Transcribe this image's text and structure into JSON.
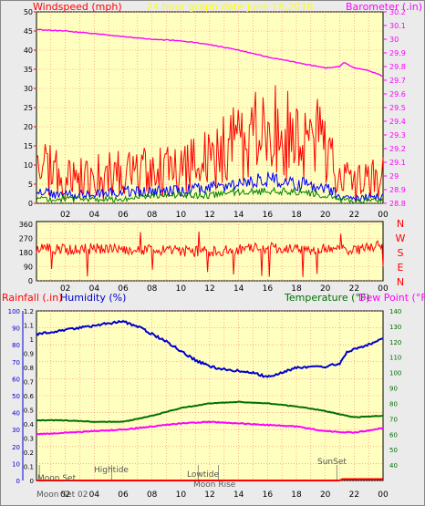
{
  "header": {
    "windspeed_label": "Windspeed (mph)",
    "graph_title": "24 hour graph date  June 18,2018",
    "barometer_label": "Barometer (.in)"
  },
  "middle_header": {
    "dir_letters": [
      "N",
      "W",
      "S",
      "E",
      "N"
    ]
  },
  "lower_header": {
    "rainfall_label": "Rainfall (.in)",
    "humidity_label": "Humidity (%)",
    "temperature_label": "Temperature (°F)",
    "dewpoint_label": "Dew Point (°F)"
  },
  "annotations": {
    "moonset_label": "Moon Set",
    "hightide_label": "Hightide",
    "lowtide_label": "Lowtide",
    "moonrise_label": "Moon Rise",
    "sunset_label": "SunSet",
    "bottom_label": "Moon Set 02"
  },
  "colors": {
    "panel_bg": "#ffffc0",
    "frame_bg": "#ebebeb",
    "grid": "#ff7878",
    "wind_red": "#ff0000",
    "wind_blue": "#0000ff",
    "wind_green": "#008000",
    "barometer": "#ff00ff",
    "humidity": "#0000cc",
    "temperature": "#007000",
    "dewpoint": "#ff00ff",
    "title_yellow": "#ffff00"
  },
  "chart_data": [
    {
      "type": "line",
      "x_tick_labels": [
        "02",
        "04",
        "06",
        "08",
        "10",
        "12",
        "14",
        "16",
        "18",
        "20",
        "22",
        "00"
      ],
      "left_axis": {
        "label": "Windspeed (mph)",
        "range": [
          0,
          50
        ],
        "ticks": [
          "0",
          "5",
          "10",
          "15",
          "20",
          "25",
          "30",
          "35",
          "40",
          "45",
          "50"
        ]
      },
      "right_axis": {
        "label": "Barometer (.in)",
        "range": [
          28.8,
          30.2
        ],
        "ticks": [
          "28.8",
          "28.9",
          "29",
          "29.1",
          "29.2",
          "29.3",
          "29.4",
          "29.5",
          "29.6",
          "29.7",
          "29.8",
          "29.9",
          "30",
          "30.1",
          "30.2"
        ]
      },
      "series": [
        {
          "name": "Barometer",
          "axis": "right",
          "x": [
            0,
            2,
            4,
            6,
            8,
            10,
            12,
            14,
            16,
            18,
            20,
            21,
            21.3,
            22,
            23,
            24
          ],
          "values": [
            30.07,
            30.06,
            30.04,
            30.02,
            30.0,
            29.99,
            29.96,
            29.92,
            29.87,
            29.83,
            29.79,
            29.8,
            29.83,
            29.79,
            29.77,
            29.73
          ]
        },
        {
          "name": "Wind gust",
          "axis": "left",
          "x": [
            0,
            2,
            4,
            6,
            8,
            10,
            12,
            13,
            14,
            15,
            16,
            17,
            18,
            19,
            20,
            21,
            22,
            23,
            24
          ],
          "values": [
            9,
            6,
            6,
            7,
            8,
            8,
            11,
            13,
            15,
            17,
            18,
            17,
            16,
            16,
            14,
            6,
            4,
            5,
            7
          ]
        },
        {
          "name": "Wind speed",
          "axis": "left",
          "x": [
            0,
            2,
            4,
            6,
            8,
            10,
            12,
            14,
            16,
            18,
            20,
            21,
            22,
            24
          ],
          "values": [
            3,
            2,
            2,
            3,
            3,
            3,
            4,
            5,
            6,
            5,
            4,
            2,
            1,
            2
          ]
        },
        {
          "name": "Wind average",
          "axis": "left",
          "x": [
            0,
            2,
            4,
            6,
            8,
            10,
            12,
            14,
            16,
            18,
            20,
            21,
            22,
            24
          ],
          "values": [
            1,
            1,
            1,
            1,
            2,
            2,
            2,
            3,
            3,
            3,
            2,
            1,
            0.5,
            1
          ]
        }
      ]
    },
    {
      "type": "scatter",
      "x_tick_labels": [
        "02",
        "04",
        "06",
        "08",
        "10",
        "12",
        "14",
        "16",
        "18",
        "20",
        "22",
        "00"
      ],
      "left_axis": {
        "range": [
          0,
          360
        ],
        "ticks": [
          "0",
          "90",
          "180",
          "270",
          "360"
        ]
      },
      "right_labels": [
        "N",
        "W",
        "S",
        "E",
        "N"
      ],
      "series": [
        {
          "name": "Wind direction",
          "x": [
            0,
            2,
            4,
            6,
            8,
            10,
            12,
            14,
            16,
            18,
            20,
            22,
            24
          ],
          "values": [
            210,
            200,
            205,
            195,
            200,
            190,
            185,
            200,
            210,
            205,
            200,
            190,
            230
          ]
        }
      ]
    },
    {
      "type": "line",
      "x_tick_labels": [
        "02",
        "04",
        "06",
        "08",
        "10",
        "12",
        "14",
        "16",
        "18",
        "20",
        "22",
        "00"
      ],
      "rainfall_axis": {
        "label": "Rainfall (.in)",
        "range": [
          0,
          1.2
        ],
        "ticks": [
          "0",
          "0.1",
          "0.2",
          "0.3",
          "0.4",
          "0.5",
          "0.6",
          "0.7",
          "0.8",
          "0.9",
          "1",
          "1.1",
          "1.2"
        ]
      },
      "humidity_axis": {
        "label": "Humidity (%)",
        "range": [
          0,
          100
        ],
        "ticks": [
          "0",
          "10",
          "20",
          "30",
          "40",
          "50",
          "60",
          "70",
          "80",
          "90",
          "100"
        ]
      },
      "temperature_axis": {
        "label": "Temperature (°F)",
        "range": [
          30,
          140
        ],
        "ticks": [
          "40",
          "50",
          "60",
          "70",
          "80",
          "90",
          "100",
          "110",
          "120",
          "130",
          "140"
        ]
      },
      "series": [
        {
          "name": "Humidity",
          "axis": "temperature",
          "x": [
            0,
            1,
            3,
            5,
            6,
            7,
            8,
            9,
            10,
            11,
            12,
            13,
            14,
            15,
            16,
            17,
            18,
            19,
            20,
            21,
            21.5,
            22,
            23,
            24
          ],
          "values": [
            125,
            126,
            129,
            132,
            133,
            130,
            125,
            120,
            114,
            108,
            104,
            102,
            101,
            100,
            97,
            100,
            103,
            104,
            104,
            106,
            113,
            115,
            118,
            122
          ]
        },
        {
          "name": "Temperature",
          "axis": "temperature",
          "x": [
            0,
            2,
            4,
            6,
            8,
            10,
            12,
            14,
            16,
            18,
            20,
            22,
            24
          ],
          "values": [
            69,
            69,
            68,
            68,
            72,
            77,
            80,
            81,
            80,
            78,
            75,
            71,
            72
          ]
        },
        {
          "name": "Dew Point",
          "axis": "temperature",
          "x": [
            0,
            2,
            4,
            6,
            8,
            10,
            12,
            14,
            16,
            18,
            20,
            22,
            24
          ],
          "values": [
            60,
            61,
            62,
            63,
            65,
            67,
            68,
            67,
            66,
            65,
            62,
            61,
            64
          ]
        },
        {
          "name": "Rainfall",
          "axis": "rainfall",
          "x": [
            0,
            21,
            21.2,
            24
          ],
          "values": [
            0,
            0,
            0.01,
            0.01
          ]
        }
      ]
    }
  ]
}
